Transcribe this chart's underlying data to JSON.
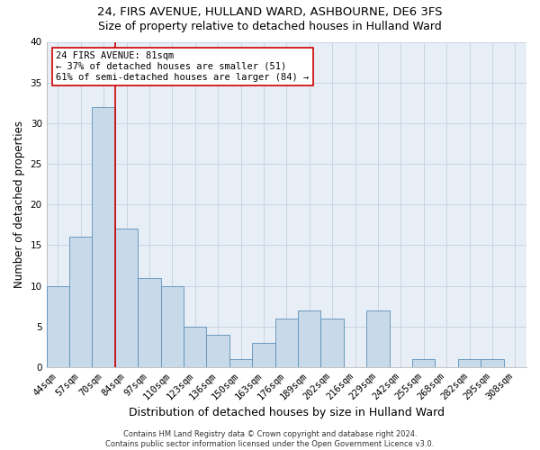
{
  "title": "24, FIRS AVENUE, HULLAND WARD, ASHBOURNE, DE6 3FS",
  "subtitle": "Size of property relative to detached houses in Hulland Ward",
  "xlabel": "Distribution of detached houses by size in Hulland Ward",
  "ylabel": "Number of detached properties",
  "categories": [
    "44sqm",
    "57sqm",
    "70sqm",
    "84sqm",
    "97sqm",
    "110sqm",
    "123sqm",
    "136sqm",
    "150sqm",
    "163sqm",
    "176sqm",
    "189sqm",
    "202sqm",
    "216sqm",
    "229sqm",
    "242sqm",
    "255sqm",
    "268sqm",
    "282sqm",
    "295sqm",
    "308sqm"
  ],
  "values": [
    10,
    16,
    32,
    17,
    11,
    10,
    5,
    4,
    1,
    3,
    6,
    7,
    6,
    0,
    7,
    0,
    1,
    0,
    1,
    1,
    0
  ],
  "bar_color": "#c8daea",
  "bar_edge_color": "#5a8fb8",
  "bar_edge_width": 0.6,
  "grid_color": "#c8d4e4",
  "background_color": "#e8eef6",
  "vline_color": "#cc0000",
  "annotation_line1": "24 FIRS AVENUE: 81sqm",
  "annotation_line2": "← 37% of detached houses are smaller (51)",
  "annotation_line3": "61% of semi-detached houses are larger (84) →",
  "annotation_box_color": "#cc0000",
  "ylim": [
    0,
    40
  ],
  "yticks": [
    0,
    5,
    10,
    15,
    20,
    25,
    30,
    35,
    40
  ],
  "footer": "Contains HM Land Registry data © Crown copyright and database right 2024.\nContains public sector information licensed under the Open Government Licence v3.0.",
  "title_fontsize": 9.5,
  "subtitle_fontsize": 9,
  "xlabel_fontsize": 9,
  "ylabel_fontsize": 8.5,
  "tick_fontsize": 7.5,
  "annotation_fontsize": 7.5,
  "footer_fontsize": 6
}
